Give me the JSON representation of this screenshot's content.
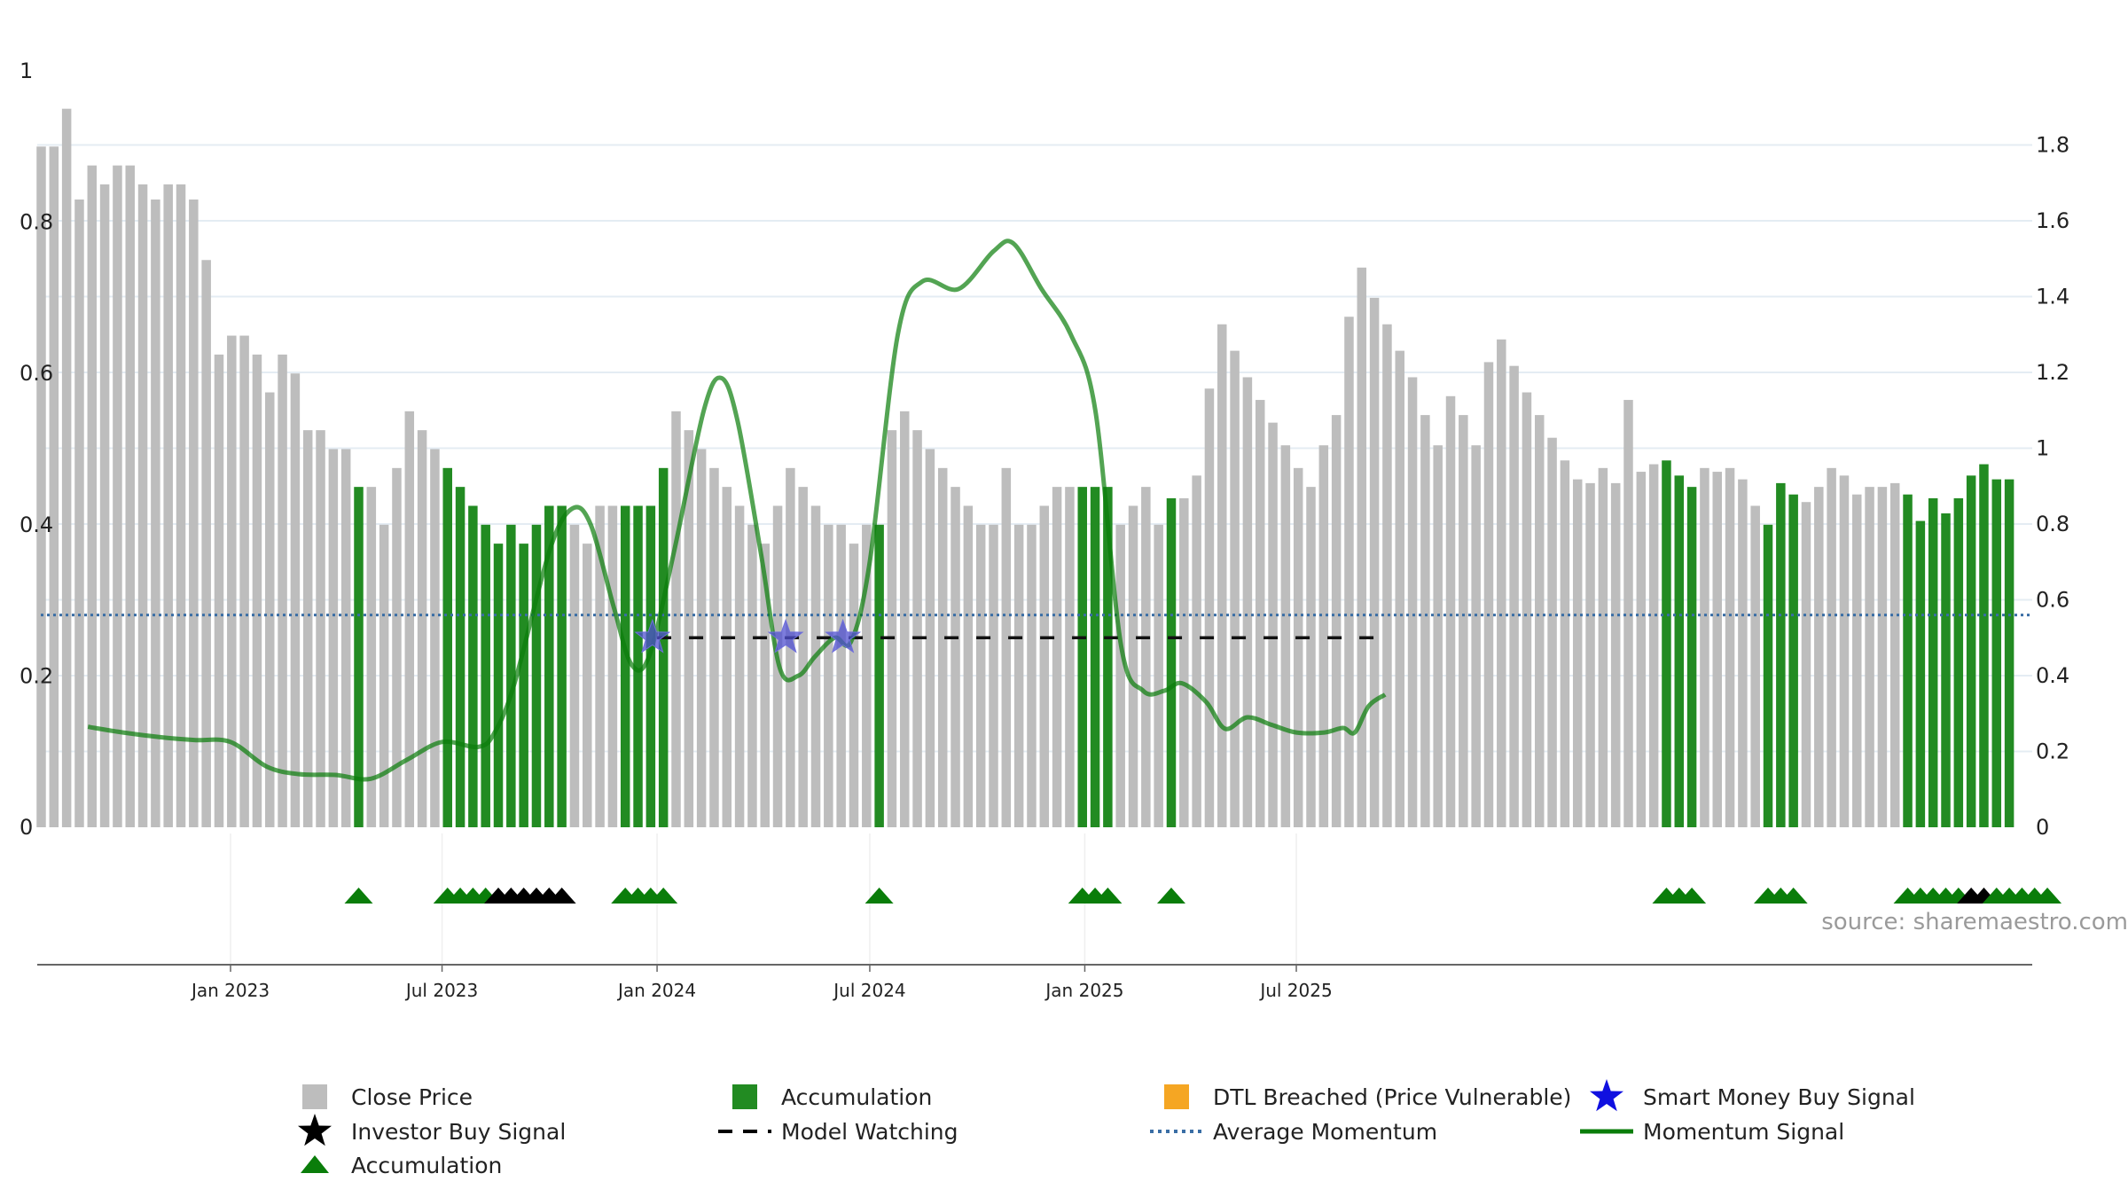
{
  "chart_data": {
    "type": "bar",
    "source_text": "source: sharemaestro.com",
    "left_axis": {
      "ylim": [
        0,
        1
      ],
      "ticks": [
        "0",
        "0.2",
        "0.4",
        "0.6",
        "0.8",
        "1"
      ]
    },
    "right_axis": {
      "ylim": [
        0,
        2
      ],
      "ticks": [
        "0",
        "0.2",
        "0.4",
        "0.6",
        "0.8",
        "1",
        "1.2",
        "1.4",
        "1.6",
        "1.8"
      ]
    },
    "x_ticks": [
      "Jan 2023",
      "Jul 2023",
      "Jan 2024",
      "Jul 2024",
      "Jan 2025",
      "Jul 2025"
    ],
    "grid": true,
    "legend_placement": "bottom",
    "legend": [
      {
        "label": "Close Price",
        "marker": "square",
        "color": "#bdbdbd"
      },
      {
        "label": "Accumulation",
        "marker": "square",
        "color": "#228b22"
      },
      {
        "label": "DTL Breached (Price Vulnerable)",
        "marker": "square",
        "color": "#f5a623"
      },
      {
        "label": "Smart Money Buy Signal",
        "marker": "star",
        "color": "#1010e0"
      },
      {
        "label": "Investor Buy Signal",
        "marker": "star",
        "color": "#000000"
      },
      {
        "label": "Model Watching",
        "marker": "dash",
        "color": "#000000"
      },
      {
        "label": "Average Momentum",
        "marker": "dotted",
        "color": "#3a6ea5"
      },
      {
        "label": "Momentum Signal",
        "marker": "line",
        "color": "#0a7d0a"
      },
      {
        "label": "Accumulation",
        "marker": "triangle",
        "color": "#0a7d0a"
      }
    ],
    "colors": {
      "price": "#bdbdbd",
      "accumulation": "#228b22",
      "momentum": "#0a7d0a",
      "average": "#3a6ea5",
      "smart_money": "#5050d0",
      "investor": "#000000"
    },
    "close_price": [
      0.9,
      0.9,
      0.95,
      0.83,
      0.875,
      0.85,
      0.875,
      0.875,
      0.85,
      0.83,
      0.85,
      0.85,
      0.83,
      0.75,
      0.625,
      0.65,
      0.65,
      0.625,
      0.575,
      0.625,
      0.6,
      0.525,
      0.525,
      0.5,
      0.5,
      0.45,
      0.45,
      0.4,
      0.475,
      0.55,
      0.525,
      0.5,
      0.475,
      0.45,
      0.425,
      0.4,
      0.375,
      0.4,
      0.375,
      0.4,
      0.425,
      0.425,
      0.4,
      0.375,
      0.425,
      0.425,
      0.425,
      0.425,
      0.425,
      0.475,
      0.55,
      0.525,
      0.5,
      0.475,
      0.45,
      0.425,
      0.4,
      0.375,
      0.425,
      0.475,
      0.45,
      0.425,
      0.4,
      0.4,
      0.375,
      0.4,
      0.4,
      0.525,
      0.55,
      0.525,
      0.5,
      0.475,
      0.45,
      0.425,
      0.4,
      0.4,
      0.475,
      0.4,
      0.4,
      0.425,
      0.45,
      0.45,
      0.45,
      0.45,
      0.45,
      0.4,
      0.425,
      0.45,
      0.4,
      0.435,
      0.435,
      0.465,
      0.58,
      0.665,
      0.63,
      0.595,
      0.565,
      0.535,
      0.505,
      0.475,
      0.45,
      0.505,
      0.545,
      0.675,
      0.74,
      0.7,
      0.665,
      0.63,
      0.595,
      0.545,
      0.505,
      0.57,
      0.545,
      0.505,
      0.615,
      0.645,
      0.61,
      0.575,
      0.545,
      0.515,
      0.485,
      0.46,
      0.455,
      0.475,
      0.455,
      0.565,
      0.47,
      0.48,
      0.485,
      0.465,
      0.45,
      0.475,
      0.47,
      0.475,
      0.46,
      0.425,
      0.4,
      0.455,
      0.44,
      0.43,
      0.45,
      0.475,
      0.465,
      0.44,
      0.45,
      0.45,
      0.455,
      0.44,
      0.405,
      0.435,
      0.415,
      0.435,
      0.465,
      0.48,
      0.46,
      0.46
    ],
    "accumulation_indices": [
      25,
      32,
      33,
      34,
      35,
      36,
      37,
      38,
      39,
      40,
      41,
      46,
      47,
      48,
      49,
      66,
      82,
      83,
      84,
      89,
      128,
      129,
      130,
      136,
      137,
      138,
      147,
      148,
      149,
      150,
      151,
      152,
      153,
      154,
      155,
      156,
      157,
      158
    ],
    "momentum_signal": [
      [
        "2022-09-01",
        0.265
      ],
      [
        "2022-10-01",
        0.25
      ],
      [
        "2022-11-01",
        0.238
      ],
      [
        "2022-12-01",
        0.23
      ],
      [
        "2023-01-01",
        0.225
      ],
      [
        "2023-02-01",
        0.16
      ],
      [
        "2023-03-01",
        0.14
      ],
      [
        "2023-04-01",
        0.138
      ],
      [
        "2023-05-01",
        0.128
      ],
      [
        "2023-06-01",
        0.178
      ],
      [
        "2023-07-01",
        0.225
      ],
      [
        "2023-08-01",
        0.212
      ],
      [
        "2023-08-15",
        0.25
      ],
      [
        "2023-09-01",
        0.38
      ],
      [
        "2023-10-01",
        0.73
      ],
      [
        "2023-10-20",
        0.84
      ],
      [
        "2023-11-05",
        0.8
      ],
      [
        "2023-11-25",
        0.58
      ],
      [
        "2023-12-10",
        0.43
      ],
      [
        "2023-12-25",
        0.45
      ],
      [
        "2024-01-15",
        0.72
      ],
      [
        "2024-02-10",
        1.1
      ],
      [
        "2024-02-25",
        1.185
      ],
      [
        "2024-03-10",
        1.07
      ],
      [
        "2024-03-30",
        0.72
      ],
      [
        "2024-04-15",
        0.42
      ],
      [
        "2024-05-01",
        0.4
      ],
      [
        "2024-05-15",
        0.45
      ],
      [
        "2024-06-01",
        0.5
      ],
      [
        "2024-06-15",
        0.49
      ],
      [
        "2024-07-01",
        0.7
      ],
      [
        "2024-07-25",
        1.3
      ],
      [
        "2024-08-15",
        1.44
      ],
      [
        "2024-09-15",
        1.42
      ],
      [
        "2024-10-15",
        1.52
      ],
      [
        "2024-11-01",
        1.54
      ],
      [
        "2024-11-25",
        1.42
      ],
      [
        "2024-12-20",
        1.3
      ],
      [
        "2025-01-10",
        1.1
      ],
      [
        "2025-02-01",
        0.48
      ],
      [
        "2025-02-20",
        0.36
      ],
      [
        "2025-03-10",
        0.36
      ],
      [
        "2025-03-25",
        0.38
      ],
      [
        "2025-04-15",
        0.33
      ],
      [
        "2025-05-01",
        0.26
      ],
      [
        "2025-05-20",
        0.29
      ],
      [
        "2025-06-10",
        0.27
      ],
      [
        "2025-07-01",
        0.25
      ],
      [
        "2025-07-25",
        0.25
      ],
      [
        "2025-08-10",
        0.262
      ],
      [
        "2025-08-20",
        0.25
      ],
      [
        "2025-09-01",
        0.32
      ],
      [
        "2025-09-15",
        0.35
      ]
    ],
    "average_momentum": 0.56,
    "model_watching_level": 0.5,
    "model_watching_range": [
      "2024-01-01",
      "2025-09-15"
    ],
    "smart_money_buy_signals": [
      "2023-12-28",
      "2024-04-20",
      "2024-06-08"
    ],
    "accumulation_triangle_indices": [
      25,
      32,
      33,
      34,
      35,
      36,
      37,
      38,
      39,
      40,
      41,
      46,
      47,
      48,
      49,
      66,
      82,
      83,
      84,
      89,
      128,
      129,
      130,
      136,
      137,
      138,
      147,
      148,
      149,
      150,
      151,
      152,
      153,
      154,
      155,
      156,
      157,
      158
    ],
    "investor_buy_signal_indices": [
      36,
      37,
      38,
      39,
      40,
      41,
      152,
      153
    ]
  }
}
